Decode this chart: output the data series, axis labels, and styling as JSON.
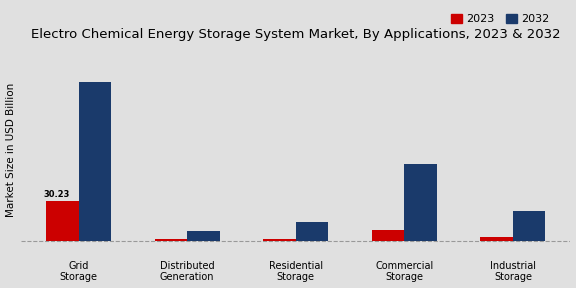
{
  "title": "Electro Chemical Energy Storage System Market, By Applications, 2023 & 2032",
  "ylabel": "Market Size in USD Billion",
  "categories": [
    "Grid\nStorage",
    "Distributed\nGeneration",
    "Residential\nStorage",
    "Commercial\nStorage",
    "Industrial\nStorage"
  ],
  "values_2023": [
    30.23,
    0.8,
    1.2,
    8.0,
    3.0
  ],
  "values_2032": [
    120.0,
    7.0,
    14.0,
    58.0,
    22.0
  ],
  "bar_color_2023": "#cc0000",
  "bar_color_2032": "#1a3a6b",
  "annotation_label": "30.23",
  "annotation_idx": 0,
  "background_color": "#e0e0e0",
  "bar_width": 0.3,
  "legend_labels": [
    "2023",
    "2032"
  ],
  "grid_color": "#999999",
  "title_fontsize": 9.5,
  "label_fontsize": 7.5,
  "tick_fontsize": 7,
  "legend_fontsize": 8,
  "ylim_min": -8,
  "ylim_max": 145
}
